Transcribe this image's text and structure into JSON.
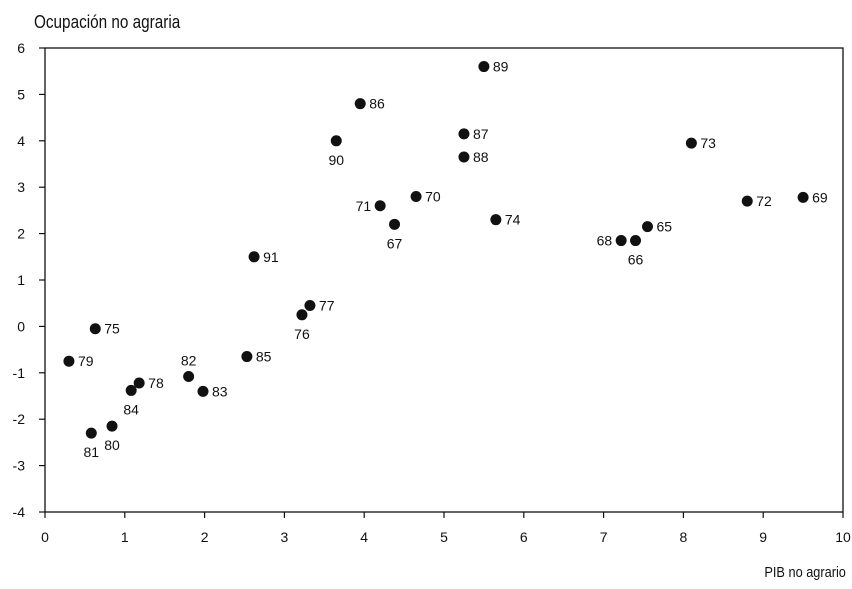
{
  "chart_data": {
    "type": "scatter",
    "title": "",
    "ylabel": "Ocupación no agraria",
    "xlabel": "PIB no agrario",
    "xlim": [
      0,
      10
    ],
    "ylim": [
      -4,
      6
    ],
    "xticks": [
      0,
      1,
      2,
      3,
      4,
      5,
      6,
      7,
      8,
      9,
      10
    ],
    "yticks": [
      -4,
      -3,
      -2,
      -1,
      0,
      1,
      2,
      3,
      4,
      5,
      6
    ],
    "grid": false,
    "points": [
      {
        "label": "89",
        "x": 5.5,
        "y": 5.6,
        "pos": "right"
      },
      {
        "label": "86",
        "x": 3.95,
        "y": 4.8,
        "pos": "right"
      },
      {
        "label": "87",
        "x": 5.25,
        "y": 4.15,
        "pos": "right"
      },
      {
        "label": "90",
        "x": 3.65,
        "y": 4.0,
        "pos": "below"
      },
      {
        "label": "73",
        "x": 8.1,
        "y": 3.95,
        "pos": "right"
      },
      {
        "label": "88",
        "x": 5.25,
        "y": 3.65,
        "pos": "right"
      },
      {
        "label": "70",
        "x": 4.65,
        "y": 2.8,
        "pos": "right"
      },
      {
        "label": "69",
        "x": 9.5,
        "y": 2.78,
        "pos": "right"
      },
      {
        "label": "72",
        "x": 8.8,
        "y": 2.7,
        "pos": "right"
      },
      {
        "label": "71",
        "x": 4.2,
        "y": 2.6,
        "pos": "left"
      },
      {
        "label": "74",
        "x": 5.65,
        "y": 2.3,
        "pos": "right"
      },
      {
        "label": "67",
        "x": 4.38,
        "y": 2.2,
        "pos": "below"
      },
      {
        "label": "65",
        "x": 7.55,
        "y": 2.15,
        "pos": "right"
      },
      {
        "label": "68",
        "x": 7.22,
        "y": 1.85,
        "pos": "left"
      },
      {
        "label": "66",
        "x": 7.4,
        "y": 1.85,
        "pos": "below"
      },
      {
        "label": "91",
        "x": 2.62,
        "y": 1.5,
        "pos": "right"
      },
      {
        "label": "77",
        "x": 3.32,
        "y": 0.45,
        "pos": "right"
      },
      {
        "label": "76",
        "x": 3.22,
        "y": 0.25,
        "pos": "below"
      },
      {
        "label": "75",
        "x": 0.63,
        "y": -0.05,
        "pos": "right"
      },
      {
        "label": "85",
        "x": 2.53,
        "y": -0.65,
        "pos": "right"
      },
      {
        "label": "79",
        "x": 0.3,
        "y": -0.75,
        "pos": "right"
      },
      {
        "label": "82",
        "x": 1.8,
        "y": -1.08,
        "pos": "above"
      },
      {
        "label": "78",
        "x": 1.18,
        "y": -1.22,
        "pos": "right"
      },
      {
        "label": "84",
        "x": 1.08,
        "y": -1.38,
        "pos": "below"
      },
      {
        "label": "83",
        "x": 1.98,
        "y": -1.4,
        "pos": "right"
      },
      {
        "label": "80",
        "x": 0.84,
        "y": -2.15,
        "pos": "below"
      },
      {
        "label": "81",
        "x": 0.58,
        "y": -2.3,
        "pos": "below"
      }
    ]
  }
}
